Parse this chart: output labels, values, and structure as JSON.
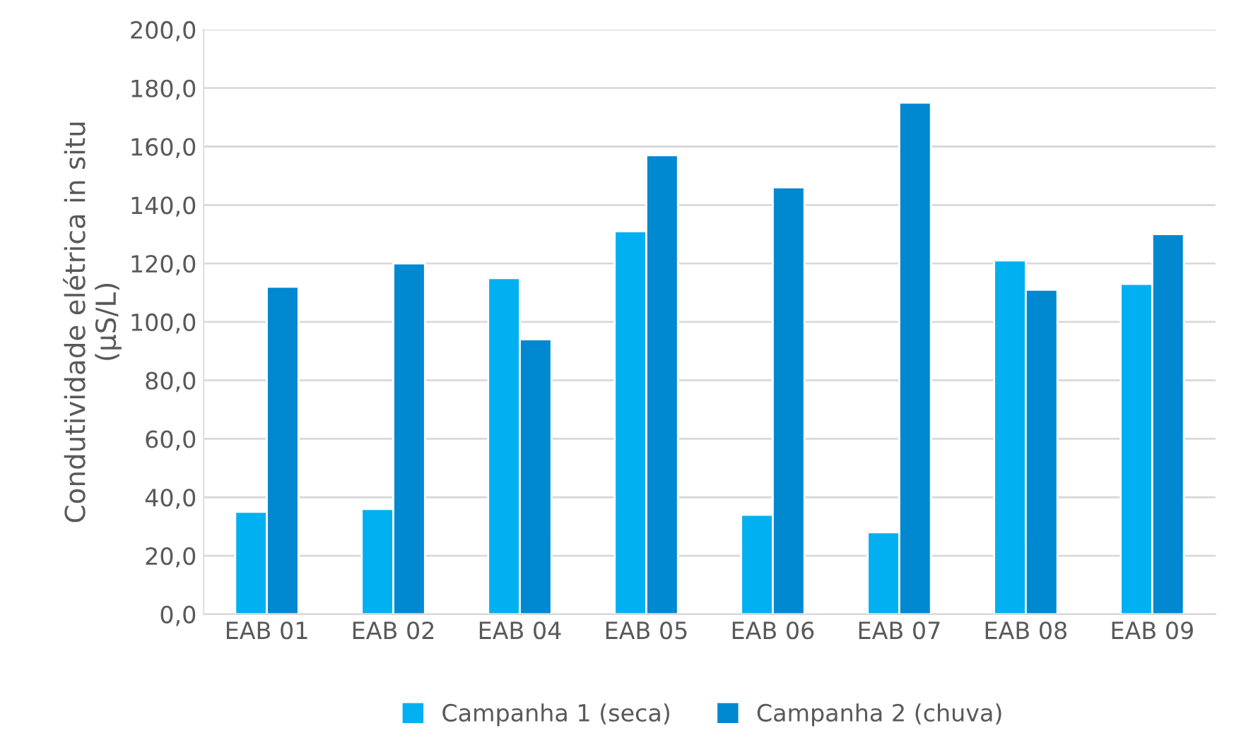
{
  "chart_data": {
    "type": "bar",
    "ylabel": "Condutividade elétrica in situ\n(µS/L)",
    "categories": [
      "EAB 01",
      "EAB 02",
      "EAB 04",
      "EAB 05",
      "EAB 06",
      "EAB 07",
      "EAB 08",
      "EAB 09"
    ],
    "series": [
      {
        "name": "Campanha 1 (seca)",
        "color": "#00b0f0",
        "values": [
          35,
          36,
          115,
          131,
          34,
          28,
          121,
          113
        ]
      },
      {
        "name": "Campanha 2 (chuva)",
        "color": "#0088d0",
        "values": [
          112,
          120,
          94,
          157,
          146,
          175,
          111,
          130
        ]
      }
    ],
    "ylim": [
      0,
      200
    ],
    "yticks": [
      {
        "value": 0,
        "label": "0,0"
      },
      {
        "value": 20,
        "label": "20,0"
      },
      {
        "value": 40,
        "label": "40,0"
      },
      {
        "value": 60,
        "label": "60,0"
      },
      {
        "value": 80,
        "label": "80,0"
      },
      {
        "value": 100,
        "label": "100,0"
      },
      {
        "value": 120,
        "label": "120,0"
      },
      {
        "value": 140,
        "label": "140,0"
      },
      {
        "value": 160,
        "label": "160,0"
      },
      {
        "value": 180,
        "label": "180,0"
      },
      {
        "value": 200,
        "label": "200,0"
      }
    ],
    "grid": "y",
    "legend": "bottom"
  }
}
